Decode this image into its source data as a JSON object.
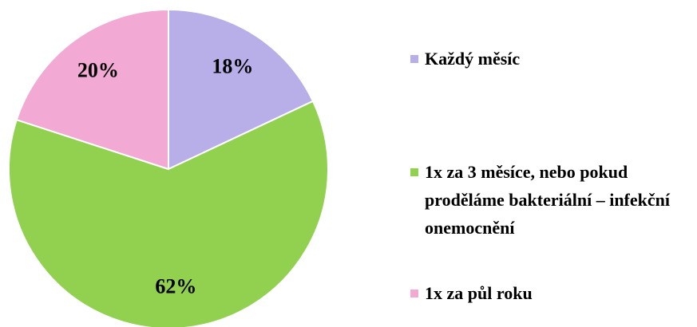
{
  "chart_data": {
    "type": "pie",
    "categories": [
      "Každý měsíc",
      "1x za 3 měsíce, nebo pokud proděláme bakteriální – infekční onemocnění",
      "1x za půl roku"
    ],
    "values": [
      18,
      62,
      20
    ],
    "value_labels": [
      "18%",
      "62%",
      "20%"
    ],
    "colors": [
      "#b8aee8",
      "#92d050",
      "#f2a9d4"
    ],
    "legend": "right"
  }
}
